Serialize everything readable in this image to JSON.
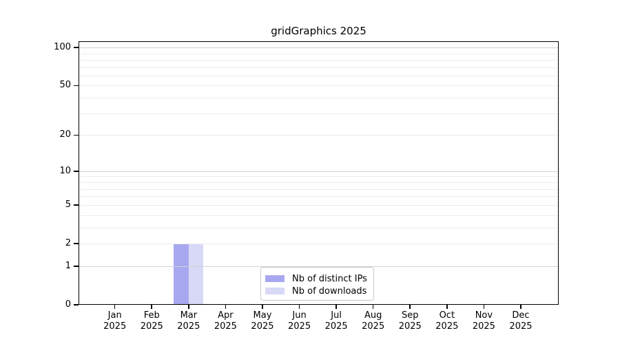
{
  "chart_data": {
    "type": "bar",
    "title": "gridGraphics 2025",
    "x_months": [
      "Jan",
      "Feb",
      "Mar",
      "Apr",
      "May",
      "Jun",
      "Jul",
      "Aug",
      "Sep",
      "Oct",
      "Nov",
      "Dec"
    ],
    "x_year": "2025",
    "series": [
      {
        "name": "Nb of distinct IPs",
        "color": "#a8a8f0",
        "values": [
          0,
          0,
          2,
          0,
          0,
          0,
          0,
          0,
          0,
          0,
          0,
          0
        ]
      },
      {
        "name": "Nb of downloads",
        "color": "#d8d8f7",
        "values": [
          0,
          0,
          2,
          0,
          0,
          0,
          0,
          0,
          0,
          0,
          0,
          0
        ]
      }
    ],
    "y_scale": "log1p",
    "ylim": [
      0,
      112
    ],
    "y_ticks": [
      0,
      1,
      2,
      5,
      10,
      20,
      50,
      100
    ],
    "y_gridlines_minor": [
      2,
      3,
      4,
      5,
      6,
      7,
      8,
      9,
      20,
      30,
      40,
      50,
      60,
      70,
      80,
      90
    ],
    "y_gridlines_major": [
      1,
      10,
      100
    ],
    "grid": true,
    "legend_position": "lower center",
    "colors": {
      "grid_minor": "#ececec",
      "grid_major": "#d2d2d2",
      "axis": "#000000",
      "background": "#ffffff"
    }
  }
}
